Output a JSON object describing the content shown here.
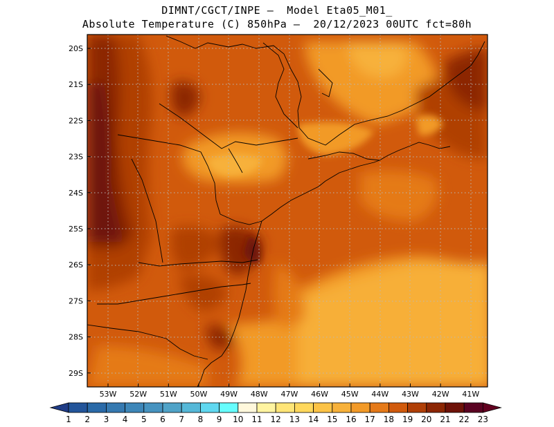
{
  "header": {
    "line1": "DIMNT/CGCT/INPE –  Model Eta05_M01_",
    "line2": "Absolute Temperature (C) 850hPa –  20/12/2023 00UTC fct=80h"
  },
  "map": {
    "lat_ticks": [
      "20S",
      "21S",
      "22S",
      "23S",
      "24S",
      "25S",
      "26S",
      "27S",
      "28S",
      "29S"
    ],
    "lon_ticks": [
      "53W",
      "52W",
      "51W",
      "50W",
      "49W",
      "48W",
      "47W",
      "46W",
      "45W",
      "44W",
      "43W",
      "42W",
      "41W"
    ]
  },
  "colorbar": {
    "labels": [
      "1",
      "2",
      "3",
      "4",
      "5",
      "6",
      "7",
      "8",
      "9",
      "10",
      "11",
      "12",
      "13",
      "14",
      "15",
      "16",
      "17",
      "18",
      "19",
      "20",
      "21",
      "22",
      "23"
    ],
    "colors": [
      "#1f3c86",
      "#23559a",
      "#2a6aa8",
      "#3579b0",
      "#3d86b8",
      "#4693c0",
      "#4fa3c8",
      "#55b8d8",
      "#5fd8f0",
      "#66fdfd",
      "#fff8dc",
      "#fff4a0",
      "#ffe577",
      "#ffd85c",
      "#fcc346",
      "#f7b13a",
      "#f29a28",
      "#e57a19",
      "#d15a0c",
      "#b03f06",
      "#8c2603",
      "#6e1208",
      "#5a0222",
      "#620020"
    ]
  }
}
